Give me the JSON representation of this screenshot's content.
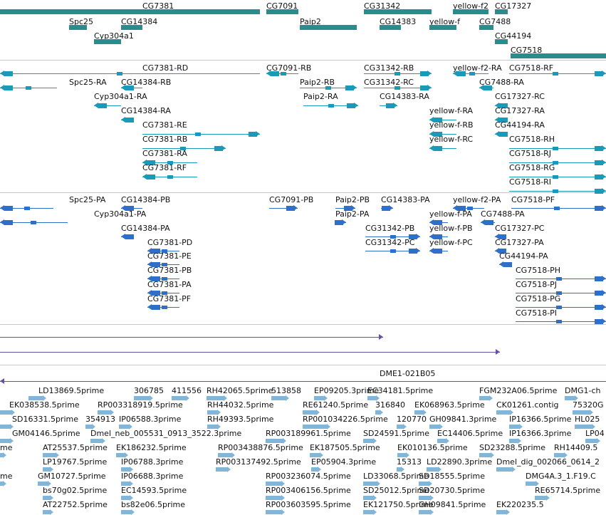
{
  "colors": {
    "gene": "#2a8c8c",
    "mrna": "#1a9ab8",
    "cds": "#2f6fcc",
    "match": "#6650aa",
    "est": "#82b6d8",
    "separator": "#c8c8c8"
  },
  "tracks": [
    {
      "name": "gene-track",
      "color": "gene",
      "features": [
        {
          "label": "CG7381",
          "kind": "gene"
        },
        {
          "label": "CG7091",
          "kind": "gene"
        },
        {
          "label": "CG31342",
          "kind": "gene"
        },
        {
          "label": "yellow-f2",
          "kind": "gene"
        },
        {
          "label": "CG17327",
          "kind": "gene"
        },
        {
          "label": "Spc25",
          "kind": "gene"
        },
        {
          "label": "CG14384",
          "kind": "gene"
        },
        {
          "label": "Paip2",
          "kind": "gene"
        },
        {
          "label": "CG14383",
          "kind": "gene"
        },
        {
          "label": "yellow-f",
          "kind": "gene"
        },
        {
          "label": "CG7488",
          "kind": "gene"
        },
        {
          "label": "Cyp304a1",
          "kind": "gene"
        },
        {
          "label": "CG44194",
          "kind": "gene"
        },
        {
          "label": "CG7518",
          "kind": "gene"
        }
      ]
    },
    {
      "name": "transcript-track",
      "color": "mrna",
      "features": [
        {
          "label": "CG7381-RD",
          "kind": "mrna"
        },
        {
          "label": "CG7091-RB",
          "kind": "mrna"
        },
        {
          "label": "CG31342-RB",
          "kind": "mrna"
        },
        {
          "label": "yellow-f2-RA",
          "kind": "mrna"
        },
        {
          "label": "CG7518-RF",
          "kind": "mrna"
        },
        {
          "label": "Spc25-RA",
          "kind": "mrna"
        },
        {
          "label": "CG14384-RB",
          "kind": "mrna"
        },
        {
          "label": "Paip2-RB",
          "kind": "mrna"
        },
        {
          "label": "CG31342-RC",
          "kind": "mrna"
        },
        {
          "label": "CG7488-RA",
          "kind": "mrna"
        },
        {
          "label": "Cyp304a1-RA",
          "kind": "mrna"
        },
        {
          "label": "Paip2-RA",
          "kind": "mrna"
        },
        {
          "label": "CG14383-RA",
          "kind": "mrna"
        },
        {
          "label": "CG17327-RC",
          "kind": "mrna"
        },
        {
          "label": "CG14384-RA",
          "kind": "mrna"
        },
        {
          "label": "yellow-f-RA",
          "kind": "mrna"
        },
        {
          "label": "CG17327-RA",
          "kind": "mrna"
        },
        {
          "label": "CG7381-RE",
          "kind": "mrna"
        },
        {
          "label": "yellow-f-RB",
          "kind": "mrna"
        },
        {
          "label": "CG44194-RA",
          "kind": "mrna"
        },
        {
          "label": "CG7381-RB",
          "kind": "mrna"
        },
        {
          "label": "yellow-f-RC",
          "kind": "mrna"
        },
        {
          "label": "CG7518-RH",
          "kind": "mrna"
        },
        {
          "label": "CG7381-RA",
          "kind": "mrna"
        },
        {
          "label": "CG7518-RJ",
          "kind": "mrna"
        },
        {
          "label": "CG7381-RF",
          "kind": "mrna"
        },
        {
          "label": "CG7518-RG",
          "kind": "mrna"
        },
        {
          "label": "CG7518-RI",
          "kind": "mrna"
        }
      ]
    },
    {
      "name": "cds-track",
      "color": "cds",
      "features": [
        {
          "label": "Spc25-PA",
          "kind": "cds"
        },
        {
          "label": "CG14384-PB",
          "kind": "cds"
        },
        {
          "label": "CG7091-PB",
          "kind": "cds"
        },
        {
          "label": "Paip2-PB",
          "kind": "cds"
        },
        {
          "label": "CG14383-PA",
          "kind": "cds"
        },
        {
          "label": "yellow-f2-PA",
          "kind": "cds"
        },
        {
          "label": "CG7518-PF",
          "kind": "cds"
        },
        {
          "label": "Cyp304a1-PA",
          "kind": "cds"
        },
        {
          "label": "Paip2-PA",
          "kind": "cds"
        },
        {
          "label": "yellow-f-PA",
          "kind": "cds"
        },
        {
          "label": "CG7488-PA",
          "kind": "cds"
        },
        {
          "label": "CG14384-PA",
          "kind": "cds"
        },
        {
          "label": "CG31342-PB",
          "kind": "cds"
        },
        {
          "label": "yellow-f-PB",
          "kind": "cds"
        },
        {
          "label": "CG17327-PC",
          "kind": "cds"
        },
        {
          "label": "CG7381-PD",
          "kind": "cds"
        },
        {
          "label": "CG31342-PC",
          "kind": "cds"
        },
        {
          "label": "yellow-f-PC",
          "kind": "cds"
        },
        {
          "label": "CG17327-PA",
          "kind": "cds"
        },
        {
          "label": "CG7381-PE",
          "kind": "cds"
        },
        {
          "label": "CG44194-PA",
          "kind": "cds"
        },
        {
          "label": "CG7381-PB",
          "kind": "cds"
        },
        {
          "label": "CG7518-PH",
          "kind": "cds"
        },
        {
          "label": "CG7381-PA",
          "kind": "cds"
        },
        {
          "label": "CG7518-PJ",
          "kind": "cds"
        },
        {
          "label": "CG7381-PF",
          "kind": "cds"
        },
        {
          "label": "CG7518-PG",
          "kind": "cds"
        },
        {
          "label": "CG7518-PI",
          "kind": "cds"
        }
      ]
    },
    {
      "name": "match-track",
      "color": "match",
      "features": [
        {
          "label": "",
          "kind": "match"
        },
        {
          "label": "",
          "kind": "match"
        }
      ]
    },
    {
      "name": "clone-track",
      "color": "match",
      "features": [
        {
          "label": "DME1-021B05",
          "kind": "match"
        }
      ]
    },
    {
      "name": "est-track",
      "color": "est",
      "features": [
        {
          "label": "LD13869.5prime",
          "kind": "est"
        },
        {
          "label": "306785",
          "kind": "est"
        },
        {
          "label": "411556",
          "kind": "est"
        },
        {
          "label": "RH42065.5prime",
          "kind": "est"
        },
        {
          "label": "513858",
          "kind": "est"
        },
        {
          "label": "EP09205.3prime",
          "kind": "est"
        },
        {
          "label": "EC34181.5prime",
          "kind": "est"
        },
        {
          "label": "FGM232A06.5prime",
          "kind": "est"
        },
        {
          "label": "DMG1-ch",
          "kind": "est"
        },
        {
          "label": "EK038538.5prime",
          "kind": "est"
        },
        {
          "label": "RP003318919.5prime",
          "kind": "est"
        },
        {
          "label": "RH44032.5prime",
          "kind": "est"
        },
        {
          "label": "RE61240.5prime",
          "kind": "est"
        },
        {
          "label": "316840",
          "kind": "est"
        },
        {
          "label": "EK068963.5prime",
          "kind": "est"
        },
        {
          "label": "CK01261.contig",
          "kind": "est"
        },
        {
          "label": "75320G",
          "kind": "est"
        },
        {
          "label": "SD16331.5prime",
          "kind": "est"
        },
        {
          "label": "354913",
          "kind": "est"
        },
        {
          "label": "IP06588.3prime",
          "kind": "est"
        },
        {
          "label": "RH49393.5prime",
          "kind": "est"
        },
        {
          "label": "RP001034226.5prime",
          "kind": "est"
        },
        {
          "label": "120770",
          "kind": "est"
        },
        {
          "label": "GH09841.3prime",
          "kind": "est"
        },
        {
          "label": "IP16366.5prime",
          "kind": "est"
        },
        {
          "label": "HL025",
          "kind": "est"
        },
        {
          "label": "GM04146.5prime",
          "kind": "est"
        },
        {
          "label": "Dmel_neb_005531_0913_3522.3prime",
          "kind": "est"
        },
        {
          "label": "RP003189961.5prime",
          "kind": "est"
        },
        {
          "label": "SD24591.5prime",
          "kind": "est"
        },
        {
          "label": "EC14406.5prime",
          "kind": "est"
        },
        {
          "label": "IP16366.3prime",
          "kind": "est"
        },
        {
          "label": "LP04",
          "kind": "est"
        },
        {
          "label": "me",
          "kind": "est"
        },
        {
          "label": "AT25537.5prime",
          "kind": "est"
        },
        {
          "label": "EK186232.5prime",
          "kind": "est"
        },
        {
          "label": "RP003438876.5prime",
          "kind": "est"
        },
        {
          "label": "EK187505.5prime",
          "kind": "est"
        },
        {
          "label": "EK010136.5prime",
          "kind": "est"
        },
        {
          "label": "SD23288.5prime",
          "kind": "est"
        },
        {
          "label": "RH14409.5",
          "kind": "est"
        },
        {
          "label": "LP19767.5prime",
          "kind": "est"
        },
        {
          "label": "IP06788.3prime",
          "kind": "est"
        },
        {
          "label": "RP003137492.5prime",
          "kind": "est"
        },
        {
          "label": "EP05904.3prime",
          "kind": "est"
        },
        {
          "label": "15313",
          "kind": "est"
        },
        {
          "label": "LD22890.3prime",
          "kind": "est"
        },
        {
          "label": "Dmel_dig_002066_0614_2",
          "kind": "est"
        },
        {
          "label": "me",
          "kind": "est"
        },
        {
          "label": "GM10727.5prime",
          "kind": "est"
        },
        {
          "label": "IP06688.3prime",
          "kind": "est"
        },
        {
          "label": "RP003236074.5prime",
          "kind": "est"
        },
        {
          "label": "LD33068.5prime",
          "kind": "est"
        },
        {
          "label": "SD18555.5prime",
          "kind": "est"
        },
        {
          "label": "DMG4A.3_1.F19.C",
          "kind": "est"
        },
        {
          "label": "bs70g02.5prime",
          "kind": "est"
        },
        {
          "label": "EC14593.5prime",
          "kind": "est"
        },
        {
          "label": "RP003406156.5prime",
          "kind": "est"
        },
        {
          "label": "SD25012.5prime",
          "kind": "est"
        },
        {
          "label": "SD20730.5prime",
          "kind": "est"
        },
        {
          "label": "RE65714.5prime",
          "kind": "est"
        },
        {
          "label": "AT22752.5prime",
          "kind": "est"
        },
        {
          "label": "bs82e06.5prime",
          "kind": "est"
        },
        {
          "label": "RP003603595.5prime",
          "kind": "est"
        },
        {
          "label": "EK121750.5prime",
          "kind": "est"
        },
        {
          "label": "GH09841.5prime",
          "kind": "est"
        },
        {
          "label": "EK220235.5",
          "kind": "est"
        }
      ]
    }
  ]
}
